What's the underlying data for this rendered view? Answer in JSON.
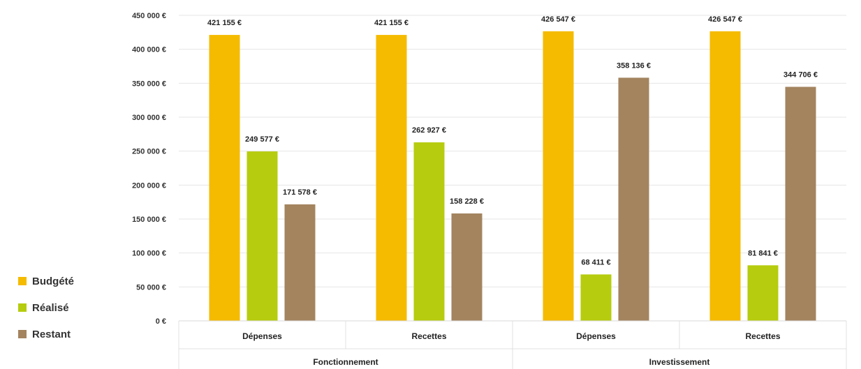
{
  "chart_data": {
    "type": "bar",
    "title": "",
    "xlabel": "",
    "ylabel": "",
    "ylim": [
      0,
      450000
    ],
    "y_ticks": [
      "0 €",
      "50 000 €",
      "100 000 €",
      "150 000 €",
      "200 000 €",
      "250 000 €",
      "300 000 €",
      "350 000 €",
      "400 000 €",
      "450 000 €"
    ],
    "y_tick_values": [
      0,
      50000,
      100000,
      150000,
      200000,
      250000,
      300000,
      350000,
      400000,
      450000
    ],
    "groups": [
      {
        "label": "Fonctionnement",
        "categories": [
          "Dépenses",
          "Recettes"
        ]
      },
      {
        "label": "Investissement",
        "categories": [
          "Dépenses",
          "Recettes"
        ]
      }
    ],
    "categories": [
      "Dépenses",
      "Recettes",
      "Dépenses",
      "Recettes"
    ],
    "series": [
      {
        "name": "Budgété",
        "color": "#f5bb00",
        "values": [
          421155,
          421155,
          426547,
          426547
        ],
        "labels": [
          "421 155 €",
          "421 155 €",
          "426 547 €",
          "426 547 €"
        ]
      },
      {
        "name": "Réalisé",
        "color": "#b6cc0e",
        "values": [
          249577,
          262927,
          68411,
          81841
        ],
        "labels": [
          "249 577 €",
          "262 927 €",
          "68 411 €",
          "81 841 €"
        ]
      },
      {
        "name": "Restant",
        "color": "#a3845f",
        "values": [
          171578,
          158228,
          358136,
          344706
        ],
        "labels": [
          "171 578 €",
          "158 228 €",
          "358 136 €",
          "344 706 €"
        ]
      }
    ],
    "grid": true,
    "legend_position": "left"
  }
}
